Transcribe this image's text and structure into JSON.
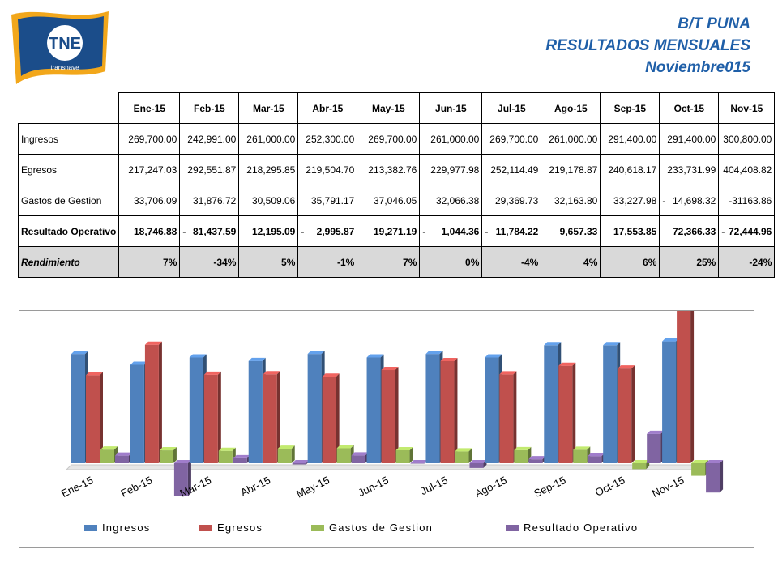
{
  "logo": {
    "text": "TNE",
    "subtext": "transnave"
  },
  "header": {
    "line1": "B/T PUNA",
    "line2": "RESULTADOS MENSUALES",
    "line3": "Noviembre015"
  },
  "table": {
    "columns": [
      "Ene-15",
      "Feb-15",
      "Mar-15",
      "Abr-15",
      "May-15",
      "Jun-15",
      "Jul-15",
      "Ago-15",
      "Sep-15",
      "Oct-15",
      "Nov-15"
    ],
    "rows": [
      {
        "label": "Ingresos",
        "values": [
          "269,700.00",
          "242,991.00",
          "261,000.00",
          "252,300.00",
          "269,700.00",
          "261,000.00",
          "269,700.00",
          "261,000.00",
          "291,400.00",
          "291,400.00",
          "300,800.00"
        ],
        "neg": [
          false,
          false,
          false,
          false,
          false,
          false,
          false,
          false,
          false,
          false,
          false
        ]
      },
      {
        "label": "Egresos",
        "values": [
          "217,247.03",
          "292,551.87",
          "218,295.85",
          "219,504.70",
          "213,382.76",
          "229,977.98",
          "252,114.49",
          "219,178.87",
          "240,618.17",
          "233,731.99",
          "404,408.82"
        ],
        "neg": [
          false,
          false,
          false,
          false,
          false,
          false,
          false,
          false,
          false,
          false,
          false
        ]
      },
      {
        "label": "Gastos de Gestion",
        "values": [
          "33,706.09",
          "31,876.72",
          "30,509.06",
          "35,791.17",
          "37,046.05",
          "32,066.38",
          "29,369.73",
          "32,163.80",
          "33,227.98",
          "14,698.32",
          "-31163.86"
        ],
        "neg": [
          false,
          false,
          false,
          false,
          false,
          false,
          false,
          false,
          false,
          true,
          false
        ]
      },
      {
        "label": "Resultado Operativo",
        "values": [
          "18,746.88",
          "81,437.59",
          "12,195.09",
          "2,995.87",
          "19,271.19",
          "1,044.36",
          "11,784.22",
          "9,657.33",
          "17,553.85",
          "72,366.33",
          "72,444.96"
        ],
        "neg": [
          false,
          true,
          false,
          true,
          false,
          true,
          true,
          false,
          false,
          false,
          true
        ]
      },
      {
        "label": "Rendimiento",
        "values": [
          "7%",
          "-34%",
          "5%",
          "-1%",
          "7%",
          "0%",
          "-4%",
          "4%",
          "6%",
          "25%",
          "-24%"
        ],
        "neg": [
          false,
          false,
          false,
          false,
          false,
          false,
          false,
          false,
          false,
          false,
          false
        ]
      }
    ],
    "neg_sign": "-"
  },
  "chart_data": {
    "type": "bar",
    "categories": [
      "Ene-15",
      "Feb-15",
      "Mar-15",
      "Abr-15",
      "May-15",
      "Jun-15",
      "Jul-15",
      "Ago-15",
      "Sep-15",
      "Oct-15",
      "Nov-15"
    ],
    "series": [
      {
        "name": "Ingresos",
        "color": "#4f81bd",
        "values": [
          269700.0,
          242991.0,
          261000.0,
          252300.0,
          269700.0,
          261000.0,
          269700.0,
          261000.0,
          291400.0,
          291400.0,
          300800.0
        ]
      },
      {
        "name": "Egresos",
        "color": "#c0504d",
        "values": [
          217247.03,
          292551.87,
          218295.85,
          219504.7,
          213382.76,
          229977.98,
          252114.49,
          219178.87,
          240618.17,
          233731.99,
          404408.82
        ]
      },
      {
        "name": "Gastos de Gestion",
        "color": "#9bbb59",
        "values": [
          33706.09,
          31876.72,
          30509.06,
          35791.17,
          37046.05,
          32066.38,
          29369.73,
          32163.8,
          33227.98,
          -14698.32,
          -31163.86
        ]
      },
      {
        "name": "Resultado Operativo",
        "color": "#8064a2",
        "values": [
          18746.88,
          -81437.59,
          12195.09,
          -2995.87,
          19271.19,
          -1044.36,
          -11784.22,
          9657.33,
          17553.85,
          72366.33,
          -72444.96
        ]
      }
    ],
    "ylim": [
      -100000,
      420000
    ],
    "legend": "bottom",
    "grid": false
  }
}
